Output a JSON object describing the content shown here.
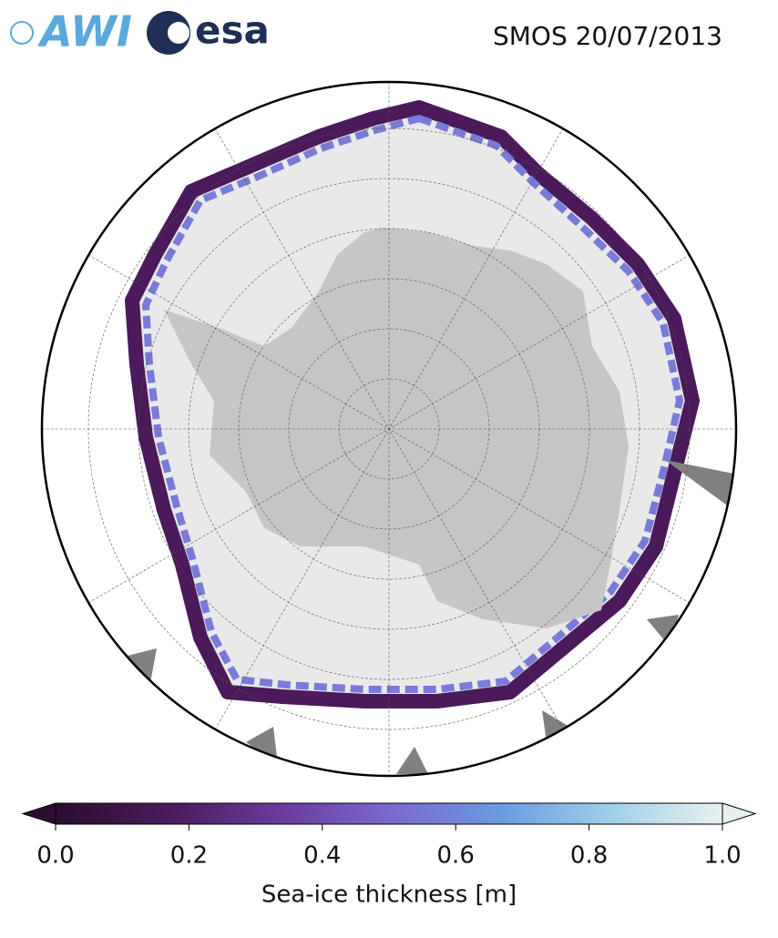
{
  "header": {
    "title": "SMOS 20/07/2013",
    "logos": [
      "AWI",
      "esa"
    ]
  },
  "colorbar": {
    "label": "Sea-ice thickness [m]",
    "lim": [
      0,
      1
    ],
    "ticks": [
      {
        "value": 0,
        "label": "0.0"
      },
      0.2,
      0.4,
      0.6,
      0.8,
      {
        "value": 1,
        "label": "1.0"
      }
    ],
    "colormap": [
      "#2a0f2e",
      "#4a1a5a",
      "#6a3a9a",
      "#7a68d0",
      "#6a9ae0",
      "#a0d0e8",
      "#e8f0f0"
    ]
  }
}
